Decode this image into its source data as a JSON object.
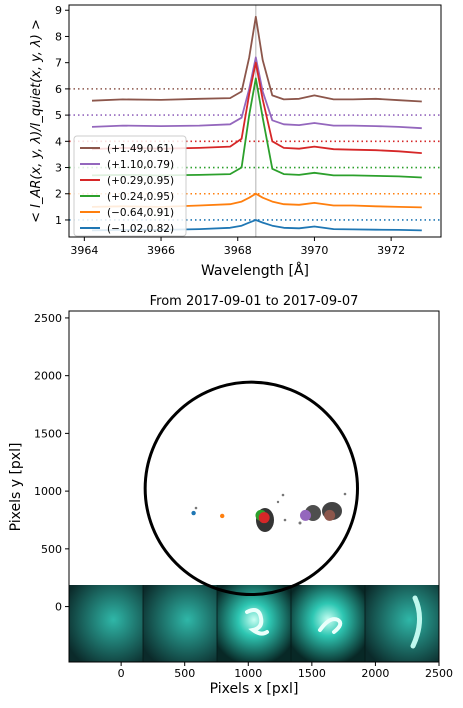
{
  "chart_data": [
    {
      "type": "line",
      "xlabel": "Wavelength [Å]",
      "ylabel": "< I_AR(x, y, λ)/I_quiet(x, y, λ) >",
      "xlim": [
        3963.6,
        3973.3
      ],
      "ylim": [
        0.35,
        9.2
      ],
      "xticks": [
        "3964",
        "3966",
        "3968",
        "3970",
        "3972"
      ],
      "yticks": [
        "1",
        "2",
        "3",
        "4",
        "5",
        "6",
        "7",
        "8",
        "9"
      ],
      "grid": false,
      "legend_position": "lower-left",
      "vline": 3968.47,
      "series": [
        {
          "name": "(+1.49,0.61)",
          "color": "#8c564b",
          "baseline": 6.0,
          "x": [
            3964.2,
            3965.0,
            3966.0,
            3967.0,
            3967.8,
            3968.1,
            3968.3,
            3968.47,
            3968.65,
            3968.9,
            3969.2,
            3969.6,
            3970.0,
            3970.5,
            3971.0,
            3971.6,
            3972.2,
            3972.8
          ],
          "y": [
            5.55,
            5.6,
            5.58,
            5.62,
            5.65,
            5.9,
            7.2,
            8.75,
            7.1,
            5.75,
            5.6,
            5.62,
            5.75,
            5.6,
            5.6,
            5.62,
            5.57,
            5.52
          ]
        },
        {
          "name": "(+1.10,0.79)",
          "color": "#9467bd",
          "baseline": 5.0,
          "x": [
            3964.2,
            3965.0,
            3966.0,
            3967.0,
            3967.8,
            3968.1,
            3968.3,
            3968.47,
            3968.65,
            3968.9,
            3969.2,
            3969.6,
            3970.0,
            3970.5,
            3971.0,
            3971.6,
            3972.2,
            3972.8
          ],
          "y": [
            4.55,
            4.6,
            4.58,
            4.6,
            4.65,
            4.9,
            6.0,
            7.2,
            5.9,
            4.8,
            4.65,
            4.62,
            4.7,
            4.6,
            4.6,
            4.58,
            4.55,
            4.5
          ]
        },
        {
          "name": "(+0.29,0.95)",
          "color": "#d62728",
          "baseline": 4.0,
          "x": [
            3964.2,
            3965.0,
            3966.0,
            3967.0,
            3967.8,
            3968.1,
            3968.3,
            3968.47,
            3968.65,
            3968.9,
            3969.2,
            3969.6,
            3970.0,
            3970.5,
            3971.0,
            3971.6,
            3972.2,
            3972.8
          ],
          "y": [
            3.7,
            3.75,
            3.72,
            3.75,
            3.8,
            4.1,
            5.8,
            7.0,
            5.6,
            4.0,
            3.75,
            3.72,
            3.8,
            3.7,
            3.68,
            3.66,
            3.62,
            3.55
          ]
        },
        {
          "name": "(+0.24,0.95)",
          "color": "#2ca02c",
          "baseline": 3.0,
          "x": [
            3964.2,
            3965.0,
            3966.0,
            3967.0,
            3967.8,
            3968.1,
            3968.3,
            3968.47,
            3968.65,
            3968.9,
            3969.2,
            3969.6,
            3970.0,
            3970.5,
            3971.0,
            3971.6,
            3972.2,
            3972.8
          ],
          "y": [
            2.7,
            2.72,
            2.7,
            2.72,
            2.75,
            3.0,
            5.0,
            6.4,
            4.9,
            2.95,
            2.75,
            2.72,
            2.8,
            2.7,
            2.7,
            2.68,
            2.66,
            2.62
          ]
        },
        {
          "name": "(−0.64,0.91)",
          "color": "#ff7f0e",
          "baseline": 2.0,
          "x": [
            3964.2,
            3965.0,
            3966.0,
            3967.0,
            3967.8,
            3968.1,
            3968.3,
            3968.47,
            3968.65,
            3968.9,
            3969.2,
            3969.6,
            3970.0,
            3970.5,
            3971.0,
            3971.6,
            3972.2,
            3972.8
          ],
          "y": [
            1.5,
            1.52,
            1.5,
            1.55,
            1.6,
            1.7,
            1.85,
            2.0,
            1.85,
            1.7,
            1.6,
            1.58,
            1.65,
            1.55,
            1.55,
            1.52,
            1.5,
            1.48
          ]
        },
        {
          "name": "(−1.02,0.82)",
          "color": "#1f77b4",
          "baseline": 1.0,
          "x": [
            3964.2,
            3965.0,
            3966.0,
            3967.0,
            3967.8,
            3968.1,
            3968.3,
            3968.47,
            3968.65,
            3968.9,
            3969.2,
            3969.6,
            3970.0,
            3970.5,
            3971.0,
            3971.6,
            3972.2,
            3972.8
          ],
          "y": [
            0.6,
            0.62,
            0.62,
            0.65,
            0.7,
            0.78,
            0.9,
            1.0,
            0.9,
            0.78,
            0.7,
            0.68,
            0.75,
            0.65,
            0.64,
            0.63,
            0.62,
            0.6
          ]
        }
      ]
    },
    {
      "type": "scatter",
      "title": "From 2017-09-01 to 2017-09-07",
      "xlabel": "Pixels x [pxl]",
      "ylabel": "Pixels y [pxl]",
      "xlim": [
        -410,
        2500
      ],
      "ylim": [
        -480,
        2560
      ],
      "xticks": [
        "0",
        "500",
        "1000",
        "1500",
        "2000",
        "2500"
      ],
      "yticks": [
        "0",
        "500",
        "1000",
        "1500",
        "2000",
        "2500"
      ],
      "grid": false,
      "disk": {
        "center": [
          1024,
          1024
        ],
        "radius": 835
      },
      "points": [
        {
          "x": 570,
          "y": 810,
          "color": "#1f77b4"
        },
        {
          "x": 795,
          "y": 785,
          "color": "#ff7f0e"
        },
        {
          "x": 1100,
          "y": 790,
          "color": "#2ca02c"
        },
        {
          "x": 1125,
          "y": 770,
          "color": "#d62728"
        },
        {
          "x": 1450,
          "y": 790,
          "color": "#9467bd"
        },
        {
          "x": 1640,
          "y": 790,
          "color": "#8c564b"
        }
      ],
      "thumbnail_colormap": "#29d0c0",
      "thumbnail_count": 5
    }
  ]
}
